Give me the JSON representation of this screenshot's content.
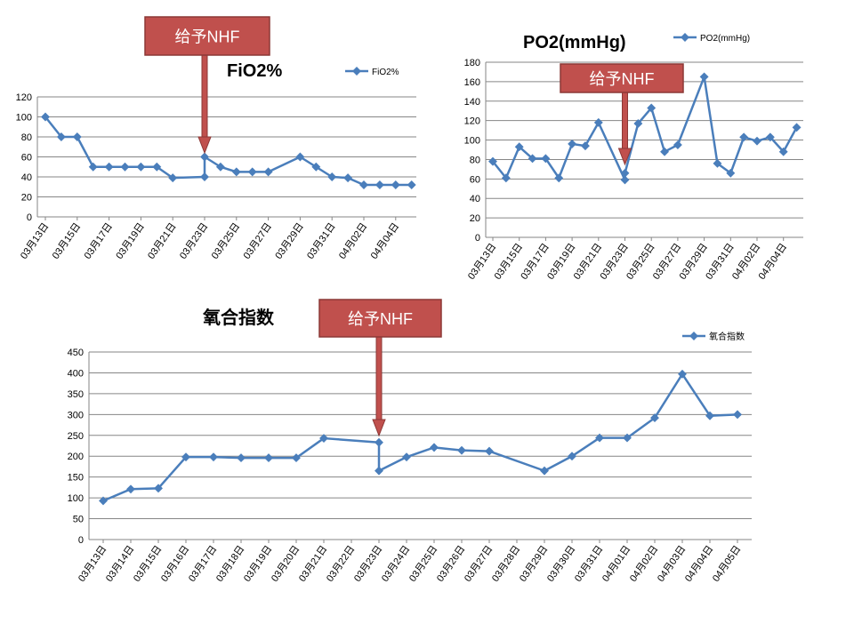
{
  "colors": {
    "series": "#4a7ebb",
    "grid": "#868686",
    "callout_fill": "#c0504d",
    "callout_border": "#8c3836"
  },
  "chart_data": [
    {
      "type": "line",
      "title": "FiO2%",
      "legend": "FiO2%",
      "legend_position": "top-right",
      "grid": true,
      "ylim": [
        0,
        120
      ],
      "yticks": [
        0,
        20,
        40,
        60,
        80,
        100,
        120
      ],
      "xlim": [
        0,
        23
      ],
      "xticks": [
        {
          "x": 0,
          "label": "03月13日"
        },
        {
          "x": 2,
          "label": "03月15日"
        },
        {
          "x": 4,
          "label": "03月17日"
        },
        {
          "x": 6,
          "label": "03月19日"
        },
        {
          "x": 8,
          "label": "03月21日"
        },
        {
          "x": 10,
          "label": "03月23日"
        },
        {
          "x": 12,
          "label": "03月25日"
        },
        {
          "x": 14,
          "label": "03月27日"
        },
        {
          "x": 16,
          "label": "03月29日"
        },
        {
          "x": 18,
          "label": "03月31日"
        },
        {
          "x": 20,
          "label": "04月02日"
        },
        {
          "x": 22,
          "label": "04月04日"
        }
      ],
      "series": [
        {
          "x": [
            0,
            1,
            2,
            3,
            4,
            5,
            6,
            7,
            8,
            10,
            10,
            11,
            12,
            13,
            14,
            16,
            17,
            18,
            19,
            20,
            21,
            22,
            23
          ],
          "y": [
            100,
            80,
            80,
            50,
            50,
            50,
            50,
            50,
            39,
            40,
            60,
            50,
            45,
            45,
            45,
            60,
            50,
            40,
            39,
            32,
            32,
            32,
            32
          ]
        }
      ],
      "annotation": {
        "text": "给予NHF",
        "x": 10
      }
    },
    {
      "type": "line",
      "title": "PO2(mmHg)",
      "legend": "PO2(mmHg)",
      "legend_position": "top",
      "grid": true,
      "ylim": [
        0,
        180
      ],
      "yticks": [
        0,
        20,
        40,
        60,
        80,
        100,
        120,
        140,
        160,
        180
      ],
      "xlim": [
        0,
        23
      ],
      "xticks": [
        {
          "x": 0,
          "label": "03月13日"
        },
        {
          "x": 2,
          "label": "03月15日"
        },
        {
          "x": 4,
          "label": "03月17日"
        },
        {
          "x": 6,
          "label": "03月19日"
        },
        {
          "x": 8,
          "label": "03月21日"
        },
        {
          "x": 10,
          "label": "03月23日"
        },
        {
          "x": 12,
          "label": "03月25日"
        },
        {
          "x": 14,
          "label": "03月27日"
        },
        {
          "x": 16,
          "label": "03月29日"
        },
        {
          "x": 18,
          "label": "03月31日"
        },
        {
          "x": 20,
          "label": "04月02日"
        },
        {
          "x": 22,
          "label": "04月04日"
        }
      ],
      "series": [
        {
          "x": [
            0,
            1,
            2,
            3,
            4,
            5,
            6,
            7,
            8,
            10,
            10,
            11,
            12,
            13,
            14,
            16,
            17,
            18,
            19,
            20,
            21,
            22,
            23
          ],
          "y": [
            78,
            61,
            93,
            81,
            81,
            61,
            96,
            94,
            118,
            59,
            66,
            117,
            133,
            88,
            95,
            165,
            76,
            66,
            103,
            99,
            103,
            88,
            113
          ]
        }
      ],
      "annotation": {
        "text": "给予NHF",
        "x": 10
      }
    },
    {
      "type": "line",
      "title": "氧合指数",
      "legend": "氧合指数",
      "legend_position": "top-right",
      "grid": true,
      "ylim": [
        0,
        450
      ],
      "yticks": [
        0,
        50,
        100,
        150,
        200,
        250,
        300,
        350,
        400,
        450
      ],
      "xlim": [
        0,
        23
      ],
      "xticks": [
        {
          "x": 0,
          "label": "03月13日"
        },
        {
          "x": 1,
          "label": "03月14日"
        },
        {
          "x": 2,
          "label": "03月15日"
        },
        {
          "x": 3,
          "label": "03月16日"
        },
        {
          "x": 4,
          "label": "03月17日"
        },
        {
          "x": 5,
          "label": "03月18日"
        },
        {
          "x": 6,
          "label": "03月19日"
        },
        {
          "x": 7,
          "label": "03月20日"
        },
        {
          "x": 8,
          "label": "03月21日"
        },
        {
          "x": 9,
          "label": "03月22日"
        },
        {
          "x": 10,
          "label": "03月23日"
        },
        {
          "x": 11,
          "label": "03月24日"
        },
        {
          "x": 12,
          "label": "03月25日"
        },
        {
          "x": 13,
          "label": "03月26日"
        },
        {
          "x": 14,
          "label": "03月27日"
        },
        {
          "x": 15,
          "label": "03月28日"
        },
        {
          "x": 16,
          "label": "03月29日"
        },
        {
          "x": 17,
          "label": "03月30日"
        },
        {
          "x": 18,
          "label": "03月31日"
        },
        {
          "x": 19,
          "label": "04月01日"
        },
        {
          "x": 20,
          "label": "04月02日"
        },
        {
          "x": 21,
          "label": "04月03日"
        },
        {
          "x": 22,
          "label": "04月04日"
        },
        {
          "x": 23,
          "label": "04月05日"
        }
      ],
      "series": [
        {
          "x": [
            0,
            1,
            2,
            3,
            4,
            5,
            6,
            7,
            8,
            10,
            10,
            11,
            12,
            13,
            14,
            16,
            17,
            18,
            19,
            20,
            21,
            22,
            23
          ],
          "y": [
            93,
            121,
            123,
            198,
            198,
            196,
            196,
            196,
            243,
            233,
            165,
            198,
            221,
            214,
            212,
            165,
            200,
            244,
            244,
            292,
            397,
            297,
            300
          ]
        }
      ],
      "annotation": {
        "text": "给予NHF",
        "x": 10
      }
    }
  ]
}
